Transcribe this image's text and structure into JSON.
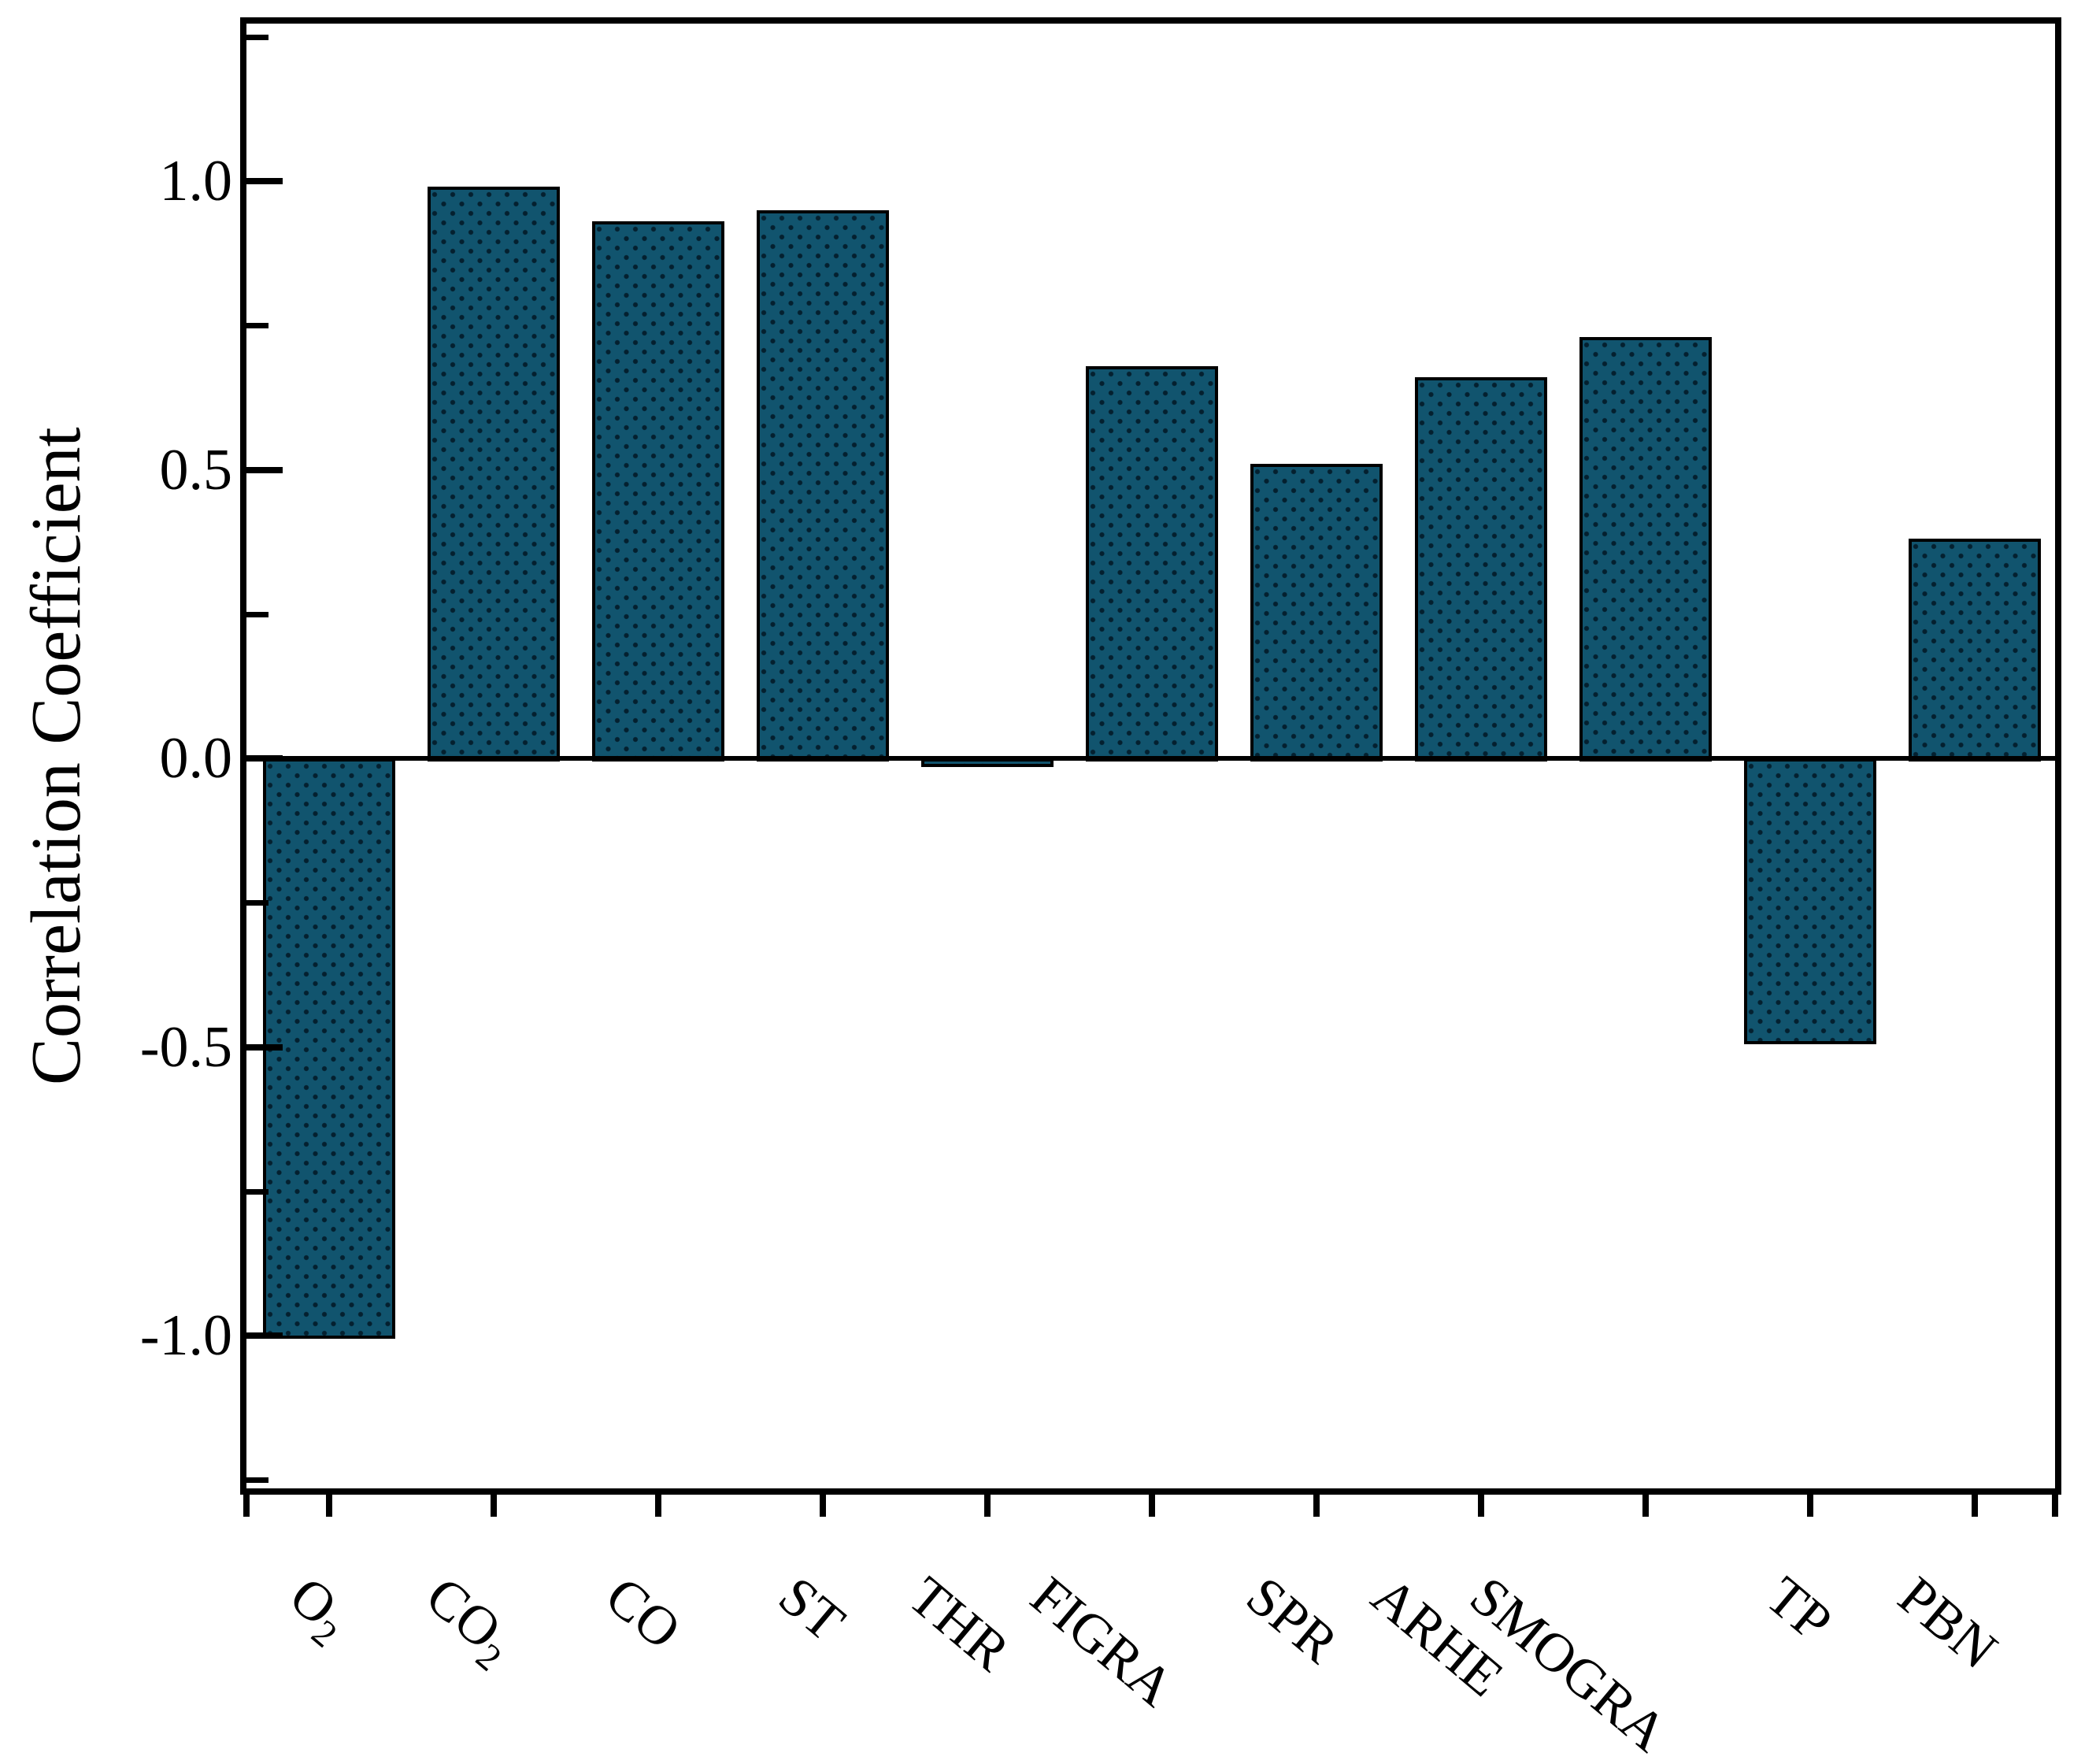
{
  "chart_data": {
    "type": "bar",
    "title": "",
    "xlabel": "",
    "ylabel": "Correlation Coefficient",
    "categories": [
      "O₂",
      "CO₂",
      "CO",
      "ST",
      "THR",
      "FIGRA",
      "SPR",
      "ARHE",
      "SMOGRA",
      "TP",
      "PBN"
    ],
    "values": [
      -1.0,
      0.99,
      0.93,
      0.95,
      -0.01,
      0.68,
      0.51,
      0.66,
      0.73,
      -0.49,
      0.38
    ],
    "ylim": [
      -1.27,
      1.27
    ],
    "yticks_major": [
      1.0,
      0.5,
      0.0,
      -0.5,
      -1.0
    ],
    "ytick_labels": [
      "1.0",
      "0.5",
      "0.0",
      "-0.5",
      "-1.0"
    ],
    "yticks_minor": [
      1.25,
      0.75,
      0.25,
      -0.25,
      -0.75,
      -1.25
    ],
    "x_label_rotation_deg": 40,
    "grid": false,
    "legend": false,
    "colors": {
      "bar_fill": "#11546e",
      "bar_pattern_dots": "#04202f",
      "bar_edge": "#000000",
      "axis": "#000000",
      "background": "#ffffff",
      "text": "#000000"
    }
  }
}
